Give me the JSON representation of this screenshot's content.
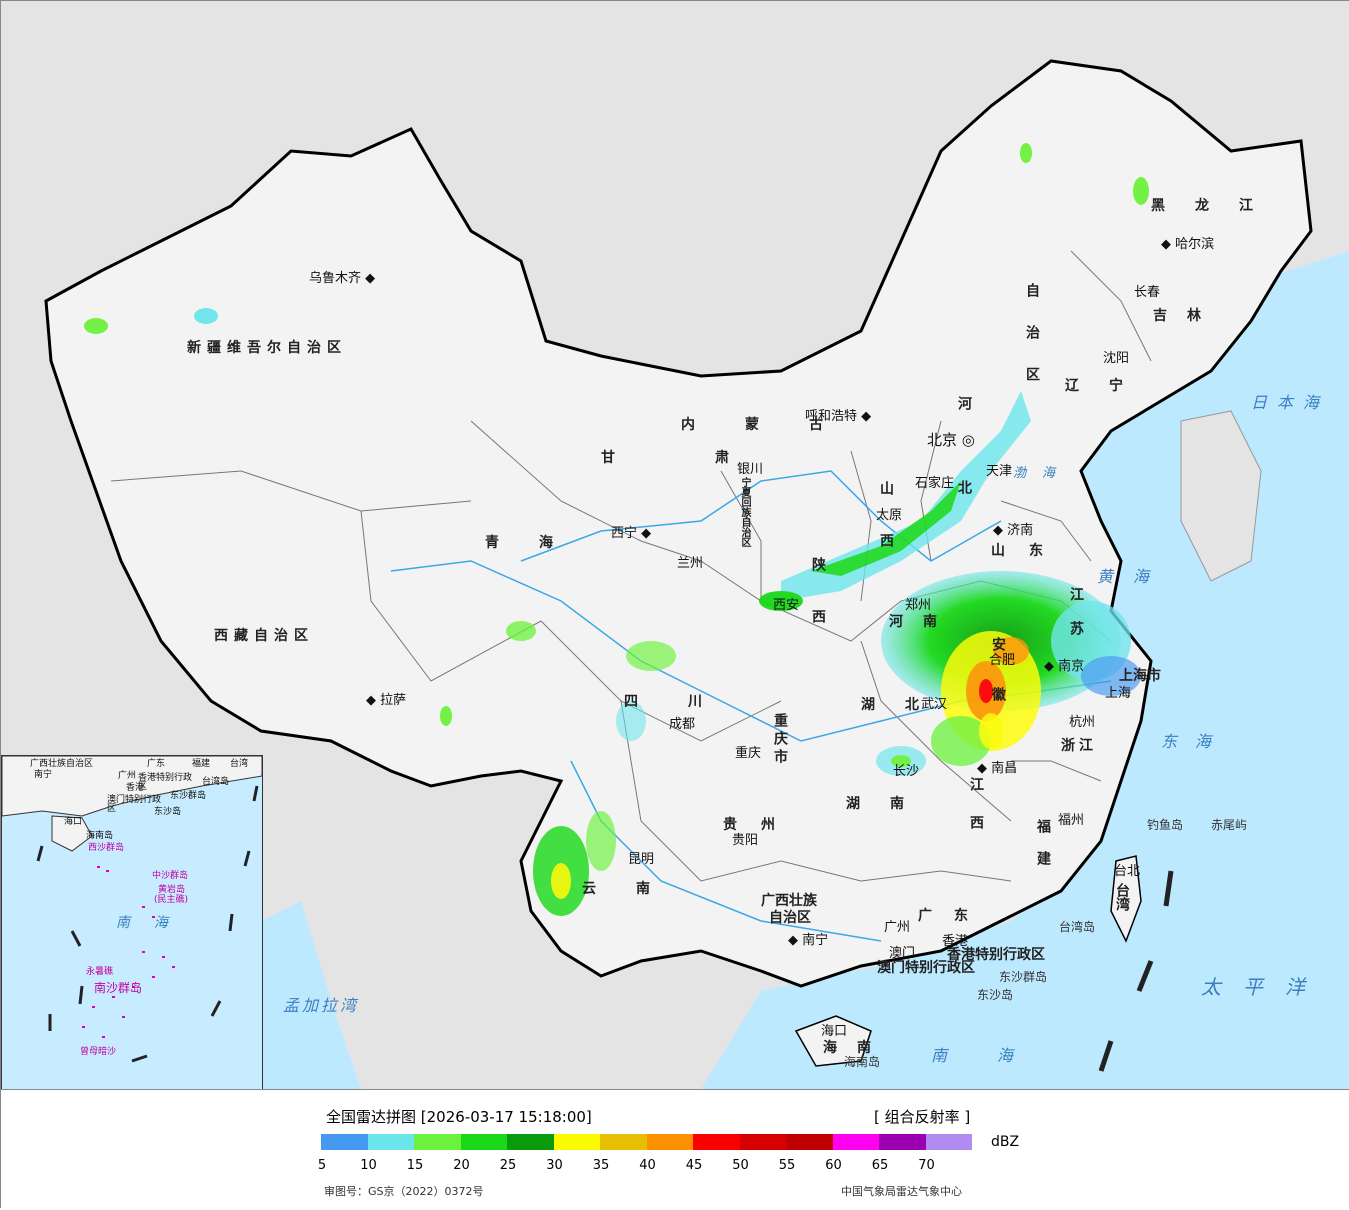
{
  "map": {
    "provinces": [
      "新疆维吾尔自治区",
      "西藏自治区",
      "青海",
      "甘肃",
      "内蒙古",
      "自治区",
      "四川",
      "云南",
      "陕西",
      "山西",
      "河北",
      "山东",
      "河南",
      "湖北",
      "湖南",
      "江西",
      "福建",
      "浙江",
      "江苏",
      "安徽",
      "贵州",
      "广西壮族",
      "自治区",
      "广东",
      "黑龙江",
      "吉林",
      "辽宁",
      "宁夏回族自治区",
      "重庆市",
      "上海市",
      "海南",
      "台湾",
      "香港特别行政区",
      "澳门特别行政区"
    ],
    "cities": [
      "乌鲁木齐",
      "拉萨",
      "西宁",
      "兰州",
      "银川",
      "呼和浩特",
      "北京",
      "天津",
      "石家庄",
      "太原",
      "济南",
      "西安",
      "郑州",
      "合肥",
      "南京",
      "上海",
      "杭州",
      "武汉",
      "长沙",
      "南昌",
      "福州",
      "台北",
      "成都",
      "重庆",
      "贵阳",
      "昆明",
      "南宁",
      "广州",
      "香港",
      "澳门",
      "海口",
      "哈尔滨",
      "长春",
      "沈阳"
    ],
    "seas": [
      "日本海",
      "黄海",
      "渤海",
      "东海",
      "太平洋",
      "南海",
      "孟加拉湾"
    ],
    "islands": [
      "钓鱼岛",
      "赤尾屿",
      "台湾岛",
      "东沙群岛",
      "东沙岛",
      "海南岛"
    ],
    "inset": {
      "labels": [
        "广西壮族自治区",
        "南宁",
        "广州",
        "广东",
        "福建",
        "台湾",
        "香港特别行政区",
        "澳门特别行政区",
        "香港",
        "台湾岛",
        "东沙群岛",
        "东沙岛",
        "海口",
        "海南岛",
        "西沙群岛",
        "中沙群岛",
        "黄岩岛",
        "(民主礁)",
        "南",
        "海",
        "永暑礁",
        "南沙群岛",
        "曾母暗沙"
      ]
    }
  },
  "legend": {
    "title": "全国雷达拼图 [2026-03-17 15:18:00]",
    "product": "[ 组合反射率 ]",
    "unit": "dBZ",
    "colors": [
      "#4499ee",
      "#6ce4ec",
      "#6cf23c",
      "#18d818",
      "#0b9a0b",
      "#fbfb00",
      "#e6c000",
      "#fc9000",
      "#fc0000",
      "#d60000",
      "#c00000",
      "#ff00f0",
      "#9a00b0",
      "#b18cf0"
    ],
    "ticks": [
      "5",
      "10",
      "15",
      "20",
      "25",
      "30",
      "35",
      "40",
      "45",
      "50",
      "55",
      "60",
      "65",
      "70"
    ],
    "approval": "审图号：GS京（2022）0372号",
    "source": "中国气象局雷达气象中心"
  }
}
